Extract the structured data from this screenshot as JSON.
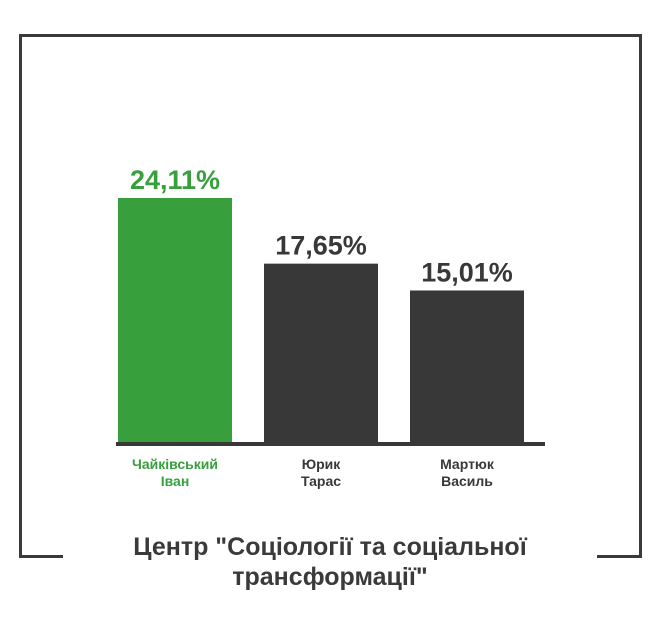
{
  "chart_data": {
    "type": "bar",
    "categories": [
      [
        "Чайківський",
        "Іван"
      ],
      [
        "Юрик",
        "Тарас"
      ],
      [
        "Мартюк",
        "Василь"
      ]
    ],
    "values": [
      24.11,
      17.65,
      15.01
    ],
    "value_labels": [
      "24,11%",
      "17,65%",
      "15,01%"
    ],
    "colors": [
      "#37a03c",
      "#383838",
      "#383838"
    ],
    "highlight_color": "#37a03c",
    "default_color": "#383838",
    "ylim": [
      0,
      30
    ],
    "grid": false,
    "legend": "none"
  },
  "source": {
    "line1": "Центр \"Соціології та соціальної",
    "line2": "трансформації\""
  }
}
